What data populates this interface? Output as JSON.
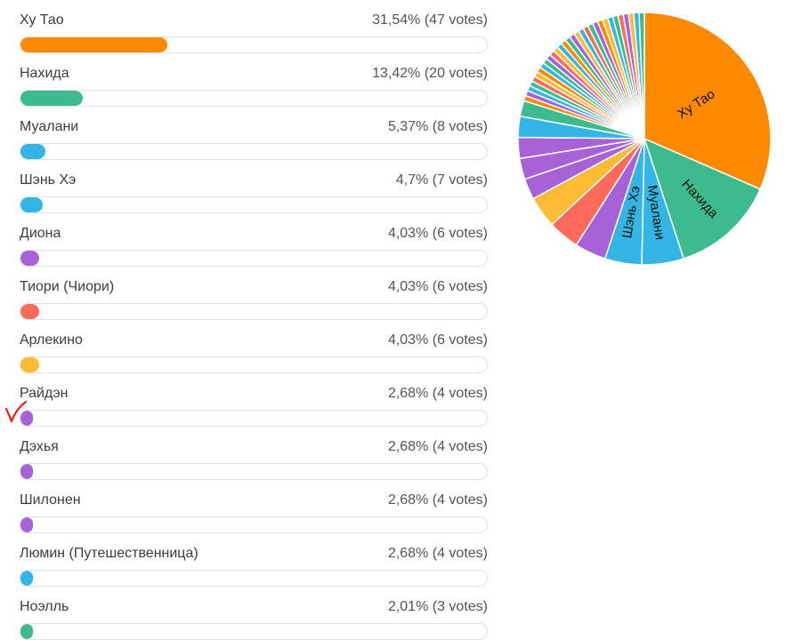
{
  "chart_data": {
    "type": "bar",
    "title": "",
    "max_percent": 100,
    "rows": [
      {
        "name": "Ху Тао",
        "percent": 31.54,
        "stat": "31,54% (47 votes)",
        "votes": 47,
        "color": "#FF8A00"
      },
      {
        "name": "Нахида",
        "percent": 13.42,
        "stat": "13,42% (20 votes)",
        "votes": 20,
        "color": "#3DBB8E"
      },
      {
        "name": "Муалани",
        "percent": 5.37,
        "stat": "5,37% (8 votes)",
        "votes": 8,
        "color": "#33B5E5"
      },
      {
        "name": "Шэнь Хэ",
        "percent": 4.7,
        "stat": "4,7% (7 votes)",
        "votes": 7,
        "color": "#33B5E5"
      },
      {
        "name": "Диона",
        "percent": 4.03,
        "stat": "4,03% (6 votes)",
        "votes": 6,
        "color": "#A662D6"
      },
      {
        "name": "Тиори (Чиори)",
        "percent": 4.03,
        "stat": "4,03% (6 votes)",
        "votes": 6,
        "color": "#FF6B5B"
      },
      {
        "name": "Арлекино",
        "percent": 4.03,
        "stat": "4,03% (6 votes)",
        "votes": 6,
        "color": "#FFBB33"
      },
      {
        "name": "Райдэн",
        "percent": 2.68,
        "stat": "2,68% (4 votes)",
        "votes": 4,
        "color": "#A662D6"
      },
      {
        "name": "Дэхья",
        "percent": 2.68,
        "stat": "2,68% (4 votes)",
        "votes": 4,
        "color": "#A662D6"
      },
      {
        "name": "Шилонен",
        "percent": 2.68,
        "stat": "2,68% (4 votes)",
        "votes": 4,
        "color": "#A662D6"
      },
      {
        "name": "Люмин (Путешественница)",
        "percent": 2.68,
        "stat": "2,68% (4 votes)",
        "votes": 4,
        "color": "#33B5E5"
      },
      {
        "name": "Ноэлль",
        "percent": 2.01,
        "stat": "2,01% (3 votes)",
        "votes": 3,
        "color": "#3DBB8E"
      }
    ],
    "pie": {
      "type": "pie",
      "labeled_slices": [
        "Ху Тао",
        "Нахида",
        "Муалани",
        "Шэнь Хэ"
      ],
      "unlisted_slice_colors": [
        "#FF8A00",
        "#A662D6",
        "#33B5E5",
        "#3DBB8E",
        "#FF6B5B",
        "#FFBB33",
        "#FF8A00",
        "#33B5E5",
        "#3DBB8E",
        "#A662D6",
        "#FF6B5B",
        "#FFBB33",
        "#33B5E5",
        "#FF8A00",
        "#3DBB8E",
        "#A662D6",
        "#FFBB33",
        "#33B5E5",
        "#FF6B5B",
        "#3DBB8E",
        "#A662D6",
        "#FF8A00",
        "#FFBB33",
        "#33B5E5",
        "#3DBB8E",
        "#FF6B5B",
        "#A662D6",
        "#FFBB33",
        "#33B5E5",
        "#3DBB8E"
      ]
    }
  },
  "annotation": {
    "mark": "check-mark",
    "color": "#E8201A"
  }
}
